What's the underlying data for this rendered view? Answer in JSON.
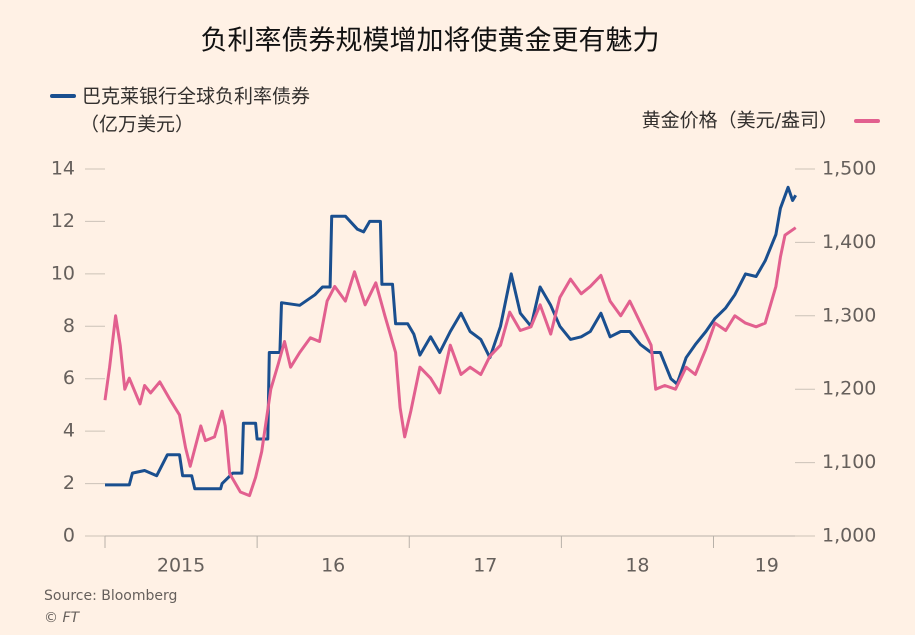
{
  "chart_data": {
    "type": "line",
    "title": "负利率债券规模增加将使黄金更有魅力",
    "y_label": "（亿万美元）",
    "source": "Source: Bloomberg",
    "credit": "© FT",
    "xlim": [
      2015,
      2019.7
    ],
    "xticks": [
      {
        "value": 2015.5,
        "label": "2015"
      },
      {
        "value": 2016.5,
        "label": "16"
      },
      {
        "value": 2017.5,
        "label": "17"
      },
      {
        "value": 2018.5,
        "label": "18"
      },
      {
        "value": 2019.35,
        "label": "19"
      }
    ],
    "ylim": [
      0,
      14
    ],
    "yticks": [
      0,
      2,
      4,
      6,
      8,
      10,
      12,
      14
    ],
    "y2lim": [
      1000,
      1500
    ],
    "y2ticks": [
      {
        "value": 1000,
        "label": "1,000"
      },
      {
        "value": 1100,
        "label": "1,100"
      },
      {
        "value": 1200,
        "label": "1,200"
      },
      {
        "value": 1300,
        "label": "1,300"
      },
      {
        "value": 1400,
        "label": "1,400"
      },
      {
        "value": 1500,
        "label": "1,500"
      }
    ],
    "series": [
      {
        "name": "巴克莱银行全球负利率债券",
        "color": "#1a4f8f",
        "x": [
          2015.0,
          2015.16,
          2015.18,
          2015.26,
          2015.34,
          2015.41,
          2015.49,
          2015.51,
          2015.57,
          2015.59,
          2015.76,
          2015.77,
          2015.84,
          2015.9,
          2015.91,
          2015.99,
          2016.0,
          2016.07,
          2016.08,
          2016.15,
          2016.16,
          2016.28,
          2016.38,
          2016.43,
          2016.48,
          2016.49,
          2016.58,
          2016.66,
          2016.7,
          2016.74,
          2016.81,
          2016.82,
          2016.89,
          2016.91,
          2016.99,
          2017.03,
          2017.07,
          2017.14,
          2017.2,
          2017.27,
          2017.34,
          2017.4,
          2017.47,
          2017.53,
          2017.6,
          2017.67,
          2017.73,
          2017.8,
          2017.86,
          2017.93,
          2017.99,
          2018.06,
          2018.13,
          2018.19,
          2018.26,
          2018.32,
          2018.39,
          2018.45,
          2018.52,
          2018.59,
          2018.65,
          2018.72,
          2018.76,
          2018.82,
          2018.88,
          2018.95,
          2019.01,
          2019.08,
          2019.14,
          2019.21,
          2019.28,
          2019.34,
          2019.41,
          2019.44,
          2019.49,
          2019.52,
          2019.54
        ],
        "values": [
          1.95,
          1.95,
          2.4,
          2.5,
          2.3,
          3.1,
          3.1,
          2.3,
          2.3,
          1.8,
          1.8,
          2.0,
          2.4,
          2.4,
          4.3,
          4.3,
          3.7,
          3.7,
          7.0,
          7.0,
          8.9,
          8.8,
          9.2,
          9.5,
          9.5,
          12.2,
          12.2,
          11.7,
          11.6,
          12.0,
          12.0,
          9.6,
          9.6,
          8.1,
          8.1,
          7.7,
          6.9,
          7.6,
          7.0,
          7.8,
          8.5,
          7.8,
          7.5,
          6.8,
          8.0,
          10.0,
          8.5,
          8.0,
          9.5,
          8.8,
          8.0,
          7.5,
          7.6,
          7.8,
          8.5,
          7.6,
          7.8,
          7.8,
          7.3,
          7.0,
          7.0,
          6.0,
          5.8,
          6.8,
          7.3,
          7.8,
          8.3,
          8.7,
          9.2,
          10.0,
          9.9,
          10.5,
          11.5,
          12.5,
          13.3,
          12.8,
          13.0
        ]
      },
      {
        "name": "黄金价格（美元/盎司）",
        "color": "#e2608f",
        "axis": "y2",
        "x": [
          2015.0,
          2015.03,
          2015.07,
          2015.1,
          2015.13,
          2015.16,
          2015.23,
          2015.26,
          2015.3,
          2015.36,
          2015.43,
          2015.49,
          2015.53,
          2015.56,
          2015.63,
          2015.66,
          2015.72,
          2015.77,
          2015.79,
          2015.82,
          2015.89,
          2015.95,
          2015.99,
          2016.03,
          2016.09,
          2016.14,
          2016.18,
          2016.22,
          2016.28,
          2016.35,
          2016.41,
          2016.46,
          2016.51,
          2016.58,
          2016.64,
          2016.71,
          2016.78,
          2016.84,
          2016.91,
          2016.94,
          2016.97,
          2017.01,
          2017.07,
          2017.14,
          2017.2,
          2017.27,
          2017.34,
          2017.4,
          2017.47,
          2017.53,
          2017.6,
          2017.66,
          2017.73,
          2017.8,
          2017.86,
          2017.93,
          2017.99,
          2018.06,
          2018.13,
          2018.19,
          2018.26,
          2018.32,
          2018.39,
          2018.45,
          2018.52,
          2018.59,
          2018.62,
          2018.68,
          2018.75,
          2018.82,
          2018.88,
          2018.95,
          2019.01,
          2019.08,
          2019.14,
          2019.21,
          2019.28,
          2019.34,
          2019.41,
          2019.44,
          2019.47,
          2019.54
        ],
        "values": [
          1185,
          1230,
          1300,
          1260,
          1200,
          1215,
          1180,
          1205,
          1195,
          1210,
          1185,
          1165,
          1120,
          1095,
          1150,
          1130,
          1135,
          1170,
          1150,
          1085,
          1060,
          1055,
          1080,
          1115,
          1200,
          1235,
          1265,
          1230,
          1250,
          1270,
          1265,
          1320,
          1340,
          1320,
          1360,
          1315,
          1345,
          1300,
          1250,
          1175,
          1135,
          1170,
          1230,
          1215,
          1195,
          1260,
          1220,
          1230,
          1220,
          1245,
          1260,
          1305,
          1280,
          1285,
          1315,
          1275,
          1325,
          1350,
          1330,
          1340,
          1355,
          1320,
          1300,
          1320,
          1290,
          1260,
          1200,
          1205,
          1200,
          1230,
          1220,
          1255,
          1290,
          1280,
          1300,
          1290,
          1285,
          1290,
          1340,
          1380,
          1410,
          1420
        ]
      }
    ]
  }
}
